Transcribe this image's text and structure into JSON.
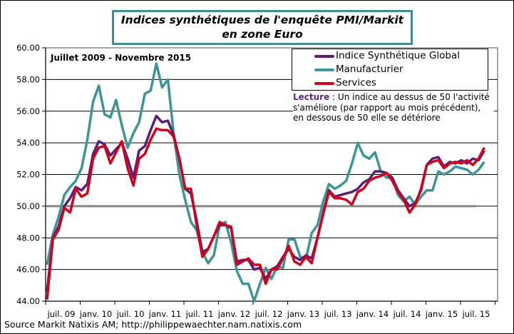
{
  "title_line1": "Indices synthétiques de l'enquête PMI/Markit",
  "title_line2": "en zone Euro",
  "subtitle": "Juillet 2009  - Novembre 2015",
  "lecture": {
    "label": "Lecture",
    "text": " : Un indice au dessus de 50 l'activité s'améliore (par rapport au mois précédent), en dessous de 50 elle se détériore"
  },
  "source": "Source Markit Natixis AM; http://philippewaechter.nam.natixis.com",
  "chart_data": {
    "type": "line",
    "title": "Indices synthétiques de l'enquête PMI/Markit en zone Euro",
    "x_start": "2009-07",
    "x_end": "2015-11",
    "months": 77,
    "xtick_labels": [
      "juil. 09",
      "janv. 10",
      "juil. 10",
      "janv. 11",
      "juil. 11",
      "janv. 12",
      "juil. 12",
      "janv. 13",
      "juil. 13",
      "janv. 14",
      "juil. 14",
      "janv. 15",
      "juil. 15"
    ],
    "ytick_labels": [
      "44.00",
      "46.00",
      "48.00",
      "50.00",
      "52.00",
      "54.00",
      "56.00",
      "58.00",
      "60.00"
    ],
    "ylim": [
      44,
      60
    ],
    "reference_line": 50,
    "grid": true,
    "legend_position": "top-right",
    "series": [
      {
        "name": "Manufacturier",
        "color": "#3f9494",
        "values": [
          46.3,
          48.2,
          49.3,
          50.7,
          51.2,
          51.6,
          52.4,
          54.2,
          56.6,
          57.6,
          55.8,
          55.6,
          56.7,
          55.1,
          53.7,
          54.6,
          55.3,
          57.1,
          57.3,
          59.0,
          57.5,
          58.0,
          54.6,
          52.0,
          50.4,
          49.0,
          48.5,
          47.1,
          46.4,
          46.9,
          48.8,
          49.0,
          47.7,
          45.9,
          45.1,
          45.1,
          44.0,
          45.1,
          46.1,
          45.4,
          46.2,
          46.1,
          47.9,
          47.9,
          46.8,
          46.7,
          48.3,
          48.8,
          50.3,
          51.4,
          51.1,
          51.3,
          51.6,
          52.7,
          54.0,
          53.2,
          53.0,
          53.4,
          52.2,
          51.8,
          51.8,
          50.7,
          50.3,
          50.6,
          50.1,
          50.6,
          51.0,
          51.0,
          52.2,
          52.0,
          52.2,
          52.5,
          52.4,
          52.3,
          52.0,
          52.3,
          52.8
        ]
      },
      {
        "name": "Indice Synthétique Global",
        "color": "#5a1f72",
        "values": [
          44.6,
          48.0,
          48.7,
          50.0,
          50.5,
          51.2,
          51.0,
          51.4,
          53.3,
          54.1,
          53.9,
          53.2,
          53.6,
          54.0,
          53.0,
          51.8,
          53.5,
          53.8,
          54.8,
          55.7,
          55.3,
          55.4,
          54.5,
          53.0,
          51.1,
          50.8,
          49.1,
          47.1,
          47.3,
          48.1,
          48.8,
          48.8,
          48.6,
          46.5,
          46.6,
          46.6,
          46.0,
          46.1,
          45.4,
          46.0,
          46.2,
          46.8,
          47.3,
          46.8,
          46.6,
          46.9,
          46.7,
          48.0,
          49.6,
          51.0,
          50.6,
          50.7,
          50.8,
          50.9,
          51.1,
          51.5,
          51.7,
          52.2,
          52.2,
          52.1,
          51.8,
          51.0,
          50.5,
          50.0,
          50.2,
          51.0,
          52.6,
          53.0,
          53.1,
          52.5,
          52.8,
          52.7,
          52.9,
          52.7,
          53.0,
          52.9,
          53.5
        ]
      },
      {
        "name": "Services",
        "color": "#d0021e",
        "values": [
          44.1,
          47.9,
          48.5,
          49.9,
          49.6,
          51.1,
          50.6,
          50.8,
          53.0,
          53.7,
          53.8,
          52.7,
          53.4,
          54.1,
          52.4,
          51.3,
          53.0,
          53.3,
          54.2,
          54.9,
          54.8,
          54.8,
          54.4,
          53.0,
          51.1,
          51.1,
          48.8,
          46.8,
          47.3,
          48.1,
          49.0,
          48.8,
          48.7,
          46.3,
          46.5,
          46.7,
          46.3,
          46.3,
          45.1,
          46.0,
          46.0,
          46.7,
          47.5,
          46.5,
          46.3,
          46.8,
          46.4,
          48.0,
          49.5,
          50.9,
          50.5,
          50.5,
          50.4,
          50.1,
          50.9,
          51.1,
          51.6,
          51.8,
          51.9,
          52.1,
          51.6,
          50.9,
          50.4,
          49.6,
          50.1,
          51.1,
          52.6,
          52.8,
          52.9,
          52.4,
          52.7,
          52.8,
          52.7,
          52.9,
          52.6,
          53.0,
          53.7
        ]
      }
    ]
  }
}
